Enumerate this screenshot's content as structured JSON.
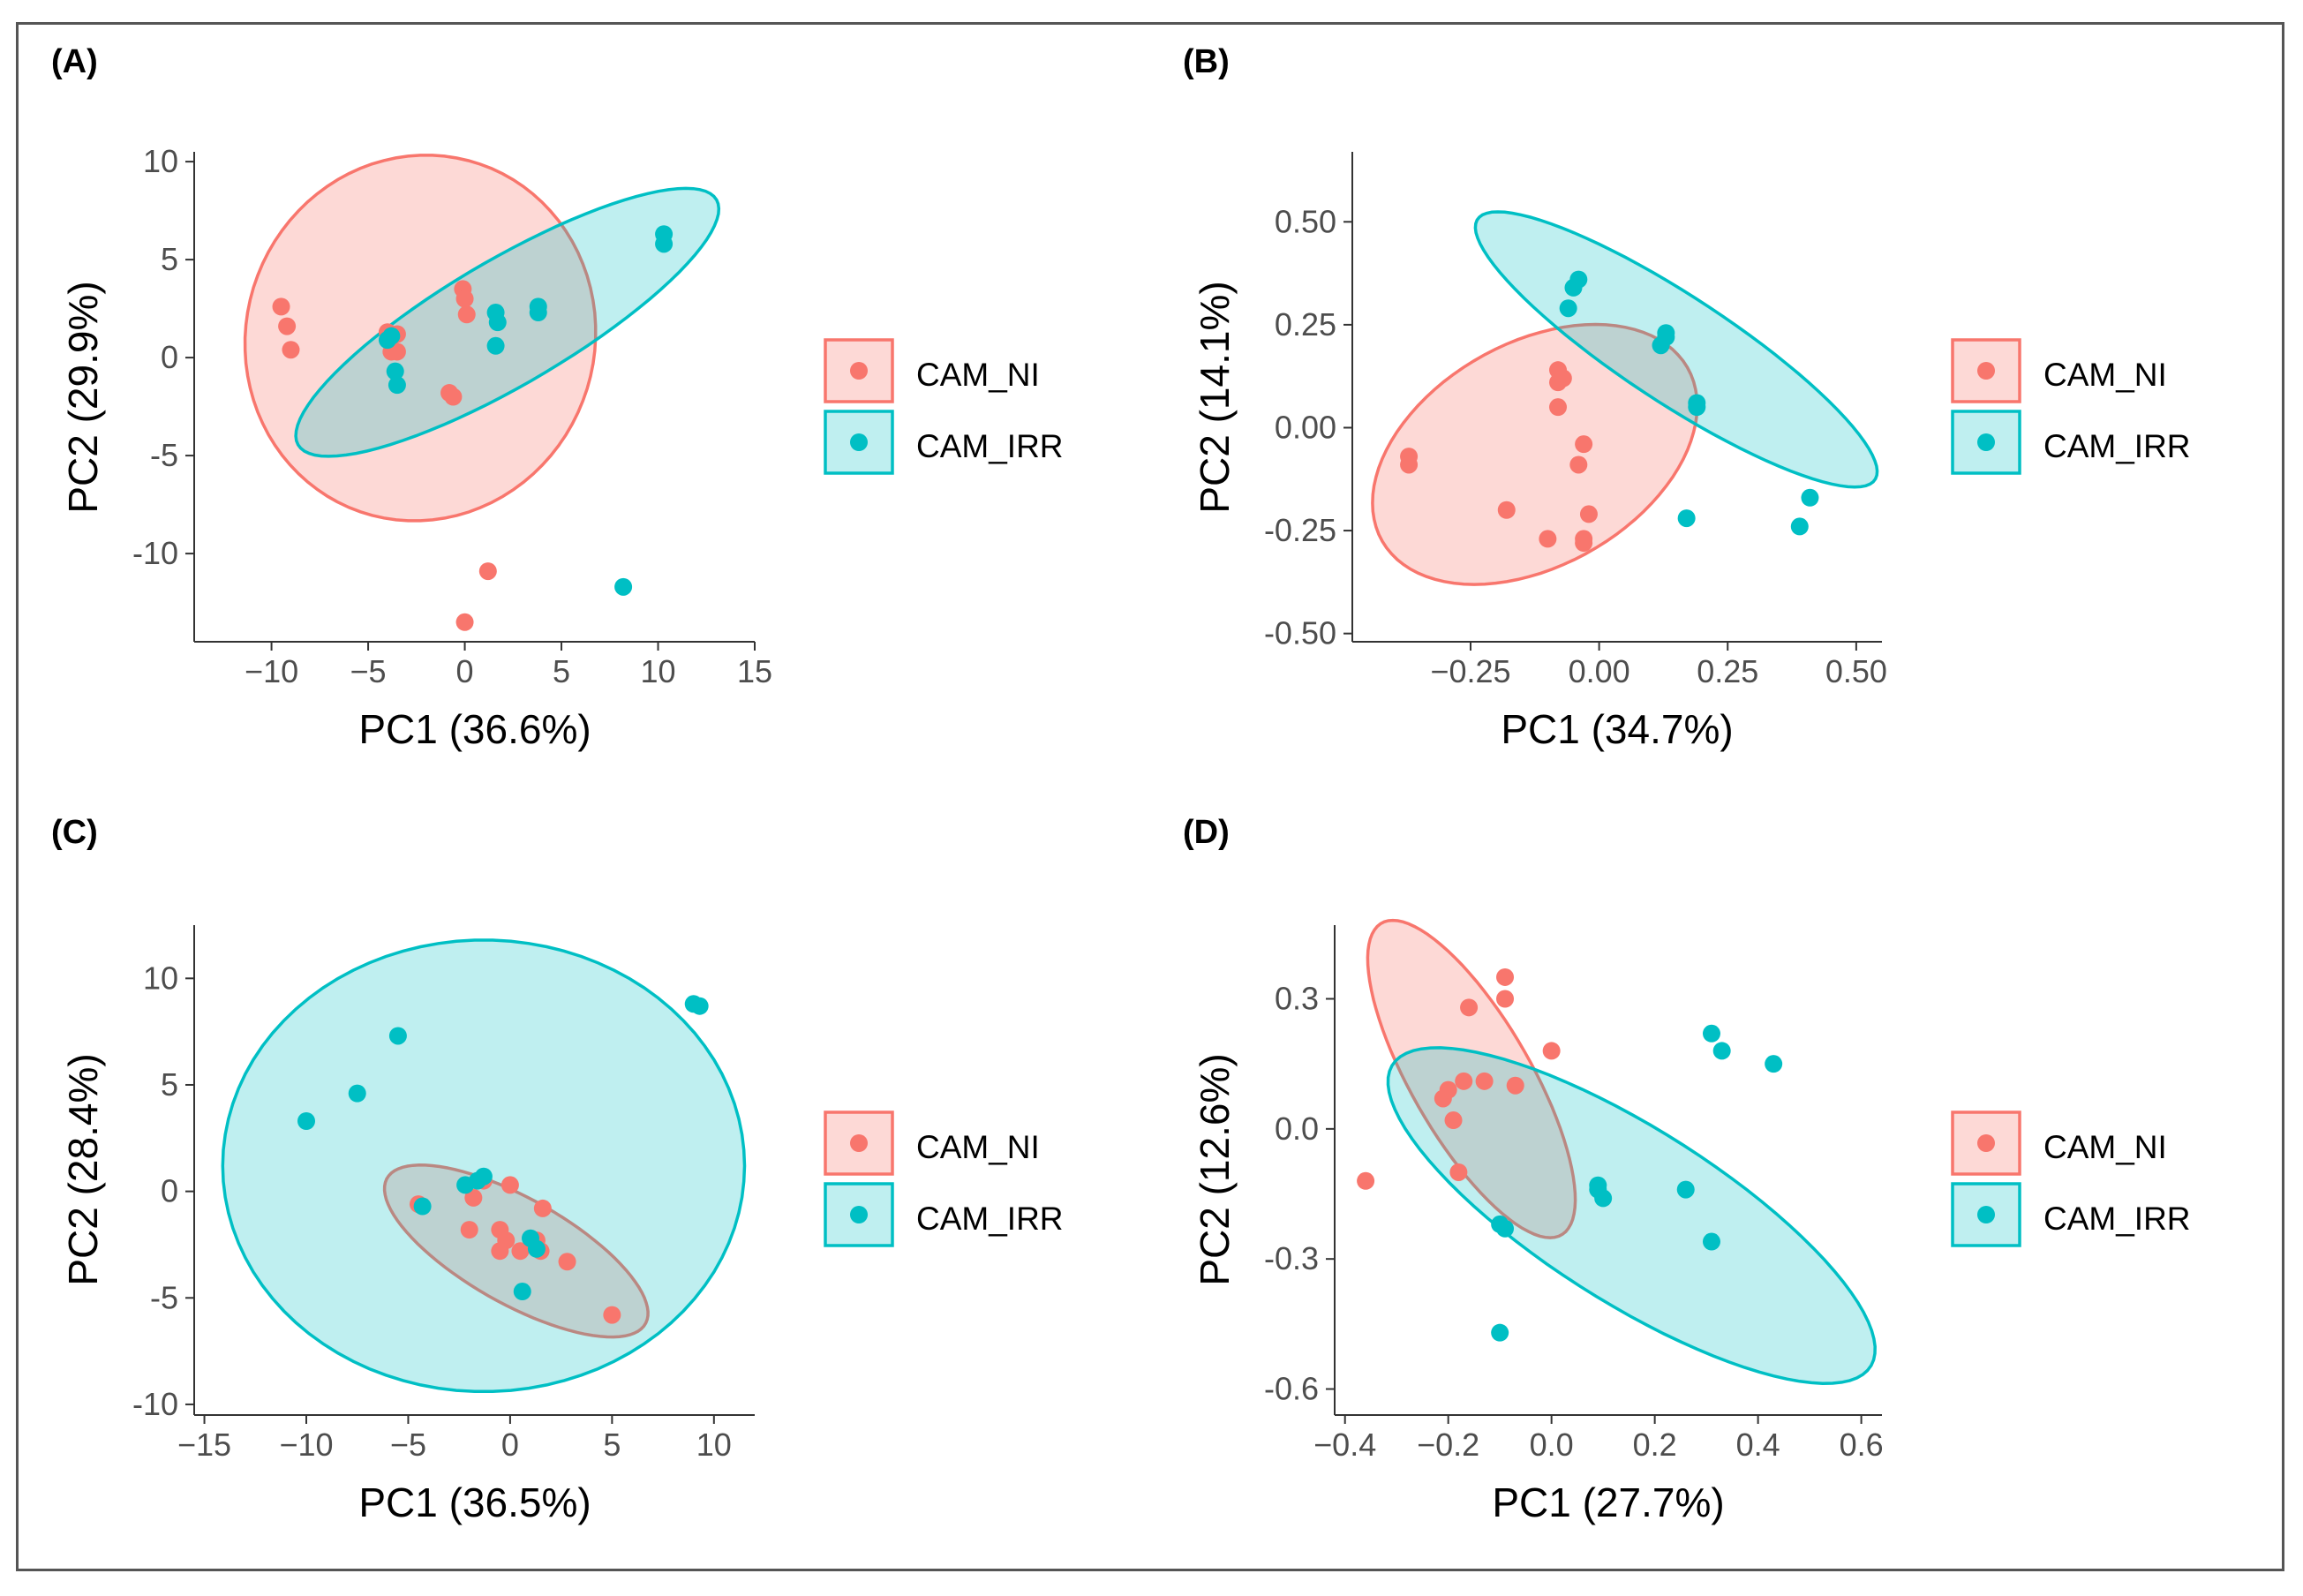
{
  "colors": {
    "ni": "#F8766D",
    "irr": "#00BFC4"
  },
  "chart_data": [
    {
      "panel": "(A)",
      "type": "scatter",
      "xlabel": "PC1 (36.6%)",
      "ylabel": "PC2 (29.9%)",
      "xlim": [
        -14,
        15
      ],
      "ylim": [
        -14.5,
        10.5
      ],
      "xticks": [
        -10,
        -5,
        0,
        5,
        10,
        15
      ],
      "yticks": [
        -10,
        -5,
        0,
        5,
        10
      ],
      "xtick_labels": [
        "−10",
        "−5",
        "0",
        "5",
        "10",
        "15"
      ],
      "ytick_labels": [
        "-10",
        "-5",
        "0",
        "5",
        "10"
      ],
      "legend": [
        "CAM_NI",
        "CAM_IRR"
      ],
      "ellipses": [
        {
          "series": "CAM_NI",
          "cx": -2.3,
          "cy": 1.0,
          "rx": 9.0,
          "ry": 9.4,
          "angle": -25
        },
        {
          "series": "CAM_IRR",
          "cx": 2.2,
          "cy": 1.8,
          "rx": 12.5,
          "ry": 3.2,
          "angle": 30
        }
      ],
      "series": [
        {
          "name": "CAM_NI",
          "points": [
            [
              -9.5,
              2.6
            ],
            [
              -9.2,
              1.6
            ],
            [
              -9.0,
              0.4
            ],
            [
              -4.0,
              1.3
            ],
            [
              -3.8,
              0.3
            ],
            [
              -3.5,
              1.2
            ],
            [
              -3.5,
              0.3
            ],
            [
              -0.8,
              -1.8
            ],
            [
              -0.6,
              -2.0
            ],
            [
              -0.1,
              3.5
            ],
            [
              0.0,
              3.0
            ],
            [
              0.1,
              2.2
            ],
            [
              1.2,
              -10.9
            ],
            [
              0.0,
              -13.5
            ]
          ]
        },
        {
          "name": "CAM_IRR",
          "points": [
            [
              -4.0,
              0.9
            ],
            [
              -3.8,
              1.1
            ],
            [
              -3.6,
              -0.7
            ],
            [
              -3.5,
              -1.4
            ],
            [
              1.6,
              2.3
            ],
            [
              1.7,
              1.8
            ],
            [
              1.6,
              0.6
            ],
            [
              3.8,
              2.3
            ],
            [
              3.8,
              2.6
            ],
            [
              10.3,
              6.3
            ],
            [
              10.3,
              5.8
            ],
            [
              8.2,
              -11.7
            ]
          ]
        }
      ]
    },
    {
      "panel": "(B)",
      "type": "scatter",
      "xlabel": "PC1 (34.7%)",
      "ylabel": "PC2 (14.1%)",
      "xlim": [
        -0.48,
        0.55
      ],
      "ylim": [
        -0.52,
        0.67
      ],
      "xticks": [
        -0.25,
        0.0,
        0.25,
        0.5
      ],
      "yticks": [
        -0.5,
        -0.25,
        0.0,
        0.25,
        0.5
      ],
      "xtick_labels": [
        "−0.25",
        "0.00",
        "0.25",
        "0.50"
      ],
      "ytick_labels": [
        "-0.50",
        "-0.25",
        "0.00",
        "0.25",
        "0.50"
      ],
      "legend": [
        "CAM_NI",
        "CAM_IRR"
      ],
      "ellipses": [
        {
          "series": "CAM_NI",
          "cx": -0.125,
          "cy": -0.065,
          "rx": 0.25,
          "ry": 0.37,
          "angle": -45
        },
        {
          "series": "CAM_IRR",
          "cx": 0.15,
          "cy": 0.19,
          "rx": 0.5,
          "ry": 0.12,
          "angle": -40
        }
      ],
      "series": [
        {
          "name": "CAM_NI",
          "points": [
            [
              -0.37,
              -0.07
            ],
            [
              -0.37,
              -0.09
            ],
            [
              -0.08,
              0.14
            ],
            [
              -0.08,
              0.11
            ],
            [
              -0.07,
              0.12
            ],
            [
              -0.08,
              0.05
            ],
            [
              -0.03,
              -0.04
            ],
            [
              -0.04,
              -0.09
            ],
            [
              -0.18,
              -0.2
            ],
            [
              -0.1,
              -0.27
            ],
            [
              -0.02,
              -0.21
            ],
            [
              -0.03,
              -0.27
            ],
            [
              -0.03,
              -0.28
            ]
          ]
        },
        {
          "name": "CAM_IRR",
          "points": [
            [
              -0.06,
              0.29
            ],
            [
              -0.05,
              0.34
            ],
            [
              -0.04,
              0.36
            ],
            [
              0.12,
              0.2
            ],
            [
              0.13,
              0.22
            ],
            [
              0.13,
              0.23
            ],
            [
              0.19,
              0.06
            ],
            [
              0.19,
              0.05
            ],
            [
              0.17,
              -0.22
            ],
            [
              0.39,
              -0.24
            ],
            [
              0.41,
              -0.17
            ]
          ]
        }
      ]
    },
    {
      "panel": "(C)",
      "type": "scatter",
      "xlabel": "PC1 (36.5%)",
      "ylabel": "PC2 (28.4%)",
      "xlim": [
        -15.5,
        12
      ],
      "ylim": [
        -10.5,
        12.5
      ],
      "xticks": [
        -15,
        -10,
        -5,
        0,
        5,
        10
      ],
      "yticks": [
        -10,
        -5,
        0,
        5,
        10
      ],
      "xtick_labels": [
        "−15",
        "−10",
        "−5",
        "0",
        "5",
        "10"
      ],
      "ytick_labels": [
        "-10",
        "-5",
        "0",
        "5",
        "10"
      ],
      "legend": [
        "CAM_NI",
        "CAM_IRR"
      ],
      "ellipses": [
        {
          "series": "CAM_NI",
          "cx": 0.3,
          "cy": -2.8,
          "rx": 7.2,
          "ry": 2.5,
          "angle": -28
        },
        {
          "series": "CAM_IRR",
          "cx": -1.3,
          "cy": 1.2,
          "rx": 12.8,
          "ry": 10.6,
          "angle": 0
        }
      ],
      "series": [
        {
          "name": "CAM_NI",
          "points": [
            [
              -4.5,
              -0.6
            ],
            [
              -2.0,
              -1.8
            ],
            [
              -1.8,
              -0.3
            ],
            [
              -1.3,
              0.5
            ],
            [
              -0.5,
              -1.8
            ],
            [
              0.0,
              0.3
            ],
            [
              -0.2,
              -2.3
            ],
            [
              -0.5,
              -2.8
            ],
            [
              0.5,
              -2.8
            ],
            [
              1.3,
              -2.3
            ],
            [
              1.6,
              -0.8
            ],
            [
              1.5,
              -2.8
            ],
            [
              2.8,
              -3.3
            ],
            [
              5.0,
              -5.8
            ]
          ]
        },
        {
          "name": "CAM_IRR",
          "points": [
            [
              -10.0,
              3.3
            ],
            [
              -7.5,
              4.6
            ],
            [
              -5.5,
              7.3
            ],
            [
              -4.3,
              -0.7
            ],
            [
              -2.2,
              0.3
            ],
            [
              -1.6,
              0.5
            ],
            [
              -1.3,
              0.7
            ],
            [
              0.6,
              -4.7
            ],
            [
              1.0,
              -2.2
            ],
            [
              1.3,
              -2.7
            ],
            [
              9.0,
              8.8
            ],
            [
              9.3,
              8.7
            ]
          ]
        }
      ]
    },
    {
      "panel": "(D)",
      "type": "scatter",
      "xlabel": "PC1 (27.7%)",
      "ylabel": "PC2 (12.6%)",
      "xlim": [
        -0.42,
        0.64
      ],
      "ylim": [
        -0.66,
        0.47
      ],
      "xticks": [
        -0.4,
        -0.2,
        0.0,
        0.2,
        0.4,
        0.6
      ],
      "yticks": [
        -0.6,
        -0.3,
        0.0,
        0.3
      ],
      "xtick_labels": [
        "−0.4",
        "−0.2",
        "0.0",
        "0.2",
        "0.4",
        "0.6"
      ],
      "ytick_labels": [
        "-0.6",
        "-0.3",
        "0.0",
        "0.3"
      ],
      "legend": [
        "CAM_NI",
        "CAM_IRR"
      ],
      "ellipses": [
        {
          "series": "CAM_NI",
          "cx": -0.155,
          "cy": 0.115,
          "rx": 0.4,
          "ry": 0.12,
          "angle": -65
        },
        {
          "series": "CAM_IRR",
          "cx": 0.155,
          "cy": -0.2,
          "rx": 0.58,
          "ry": 0.19,
          "angle": -38
        }
      ],
      "series": [
        {
          "name": "CAM_NI",
          "points": [
            [
              -0.36,
              -0.12
            ],
            [
              -0.21,
              0.07
            ],
            [
              -0.2,
              0.09
            ],
            [
              -0.17,
              0.11
            ],
            [
              -0.16,
              0.28
            ],
            [
              -0.13,
              0.11
            ],
            [
              -0.09,
              0.35
            ],
            [
              -0.09,
              0.3
            ],
            [
              -0.07,
              0.1
            ],
            [
              -0.19,
              0.02
            ],
            [
              -0.18,
              -0.1
            ],
            [
              0.0,
              0.18
            ]
          ]
        },
        {
          "name": "CAM_IRR",
          "points": [
            [
              -0.1,
              -0.22
            ],
            [
              -0.09,
              -0.23
            ],
            [
              -0.1,
              -0.47
            ],
            [
              0.09,
              -0.14
            ],
            [
              0.09,
              -0.13
            ],
            [
              0.1,
              -0.16
            ],
            [
              0.26,
              -0.14
            ],
            [
              0.31,
              0.22
            ],
            [
              0.33,
              0.18
            ],
            [
              0.43,
              0.15
            ],
            [
              0.31,
              -0.26
            ]
          ]
        }
      ]
    }
  ]
}
